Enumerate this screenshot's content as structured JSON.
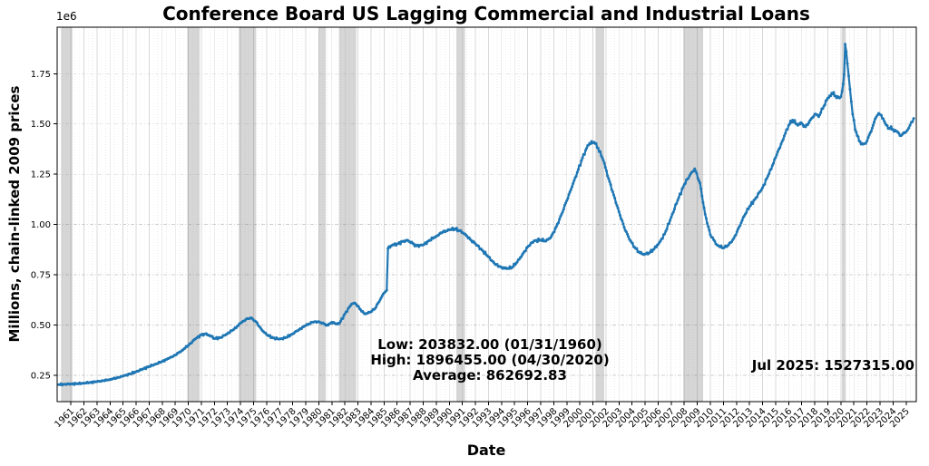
{
  "title": "Conference Board US Lagging Commercial and Industrial Loans",
  "annotations": {
    "stats_line1": "Low: 203832.00 (01/31/1960)",
    "stats_line2": "High: 1896455.00 (04/30/2020)",
    "stats_line3": "Average: 862692.83",
    "latest": "Jul 2025: 1527315.00"
  },
  "chart_data": {
    "type": "line",
    "title": "Conference Board US Lagging Commercial and Industrial Loans",
    "xlabel": "Date",
    "ylabel": "Millions, chain-linked 2009 prices",
    "y_offset_text": "1e6",
    "line_color": "#1f77b4",
    "recession_band_color": "rgba(128,128,128,0.32)",
    "grid": true,
    "legend": "none",
    "xlim": [
      1959.95,
      2025.78
    ],
    "ylim": [
      119201,
      1981086
    ],
    "x_ticks": [
      "1961",
      "1962",
      "1963",
      "1964",
      "1965",
      "1966",
      "1967",
      "1968",
      "1969",
      "1970",
      "1971",
      "1972",
      "1973",
      "1974",
      "1975",
      "1976",
      "1977",
      "1978",
      "1979",
      "1980",
      "1981",
      "1982",
      "1983",
      "1984",
      "1985",
      "1986",
      "1987",
      "1988",
      "1989",
      "1990",
      "1991",
      "1992",
      "1993",
      "1994",
      "1995",
      "1996",
      "1997",
      "1998",
      "1999",
      "2000",
      "2001",
      "2002",
      "2003",
      "2004",
      "2005",
      "2006",
      "2007",
      "2008",
      "2009",
      "2010",
      "2011",
      "2012",
      "2013",
      "2014",
      "2015",
      "2016",
      "2017",
      "2018",
      "2019",
      "2020",
      "2021",
      "2022",
      "2023",
      "2024",
      "2025"
    ],
    "x_tick_years": [
      1961,
      1962,
      1963,
      1964,
      1965,
      1966,
      1967,
      1968,
      1969,
      1970,
      1971,
      1972,
      1973,
      1974,
      1975,
      1976,
      1977,
      1978,
      1979,
      1980,
      1981,
      1982,
      1983,
      1984,
      1985,
      1986,
      1987,
      1988,
      1989,
      1990,
      1991,
      1992,
      1993,
      1994,
      1995,
      1996,
      1997,
      1998,
      1999,
      2000,
      2001,
      2002,
      2003,
      2004,
      2005,
      2006,
      2007,
      2008,
      2009,
      2010,
      2011,
      2012,
      2013,
      2014,
      2015,
      2016,
      2017,
      2018,
      2019,
      2020,
      2021,
      2022,
      2023,
      2024,
      2025
    ],
    "y_ticks": [
      {
        "value": 250000,
        "label": "0.25"
      },
      {
        "value": 500000,
        "label": "0.50"
      },
      {
        "value": 750000,
        "label": "0.75"
      },
      {
        "value": 1000000,
        "label": "1.00"
      },
      {
        "value": 1250000,
        "label": "1.25"
      },
      {
        "value": 1500000,
        "label": "1.50"
      },
      {
        "value": 1750000,
        "label": "1.75"
      }
    ],
    "recession_bands": [
      [
        1960.25,
        1961.12
      ],
      [
        1969.92,
        1970.87
      ],
      [
        1973.87,
        1975.2
      ],
      [
        1980.0,
        1980.54
      ],
      [
        1981.54,
        1982.87
      ],
      [
        1990.54,
        1991.2
      ],
      [
        2001.2,
        2001.87
      ],
      [
        2007.92,
        2009.45
      ],
      [
        2020.08,
        2020.37
      ]
    ],
    "series": [
      {
        "name": "US Lagging Commercial and Industrial Loans",
        "low": {
          "value": 203832.0,
          "date": "01/31/1960"
        },
        "high": {
          "value": 1896455.0,
          "date": "04/30/2020"
        },
        "average": 862692.83,
        "last": {
          "value": 1527315.0,
          "date": "Jul 2025"
        },
        "points": [
          [
            1960.08,
            203832
          ],
          [
            1960.5,
            205500
          ],
          [
            1961,
            207000
          ],
          [
            1961.5,
            208500
          ],
          [
            1962,
            211000
          ],
          [
            1962.5,
            214500
          ],
          [
            1963,
            218500
          ],
          [
            1963.5,
            223500
          ],
          [
            1964,
            229500
          ],
          [
            1964.5,
            237000
          ],
          [
            1965,
            246000
          ],
          [
            1965.5,
            256000
          ],
          [
            1966,
            268000
          ],
          [
            1966.5,
            281000
          ],
          [
            1967,
            294000
          ],
          [
            1967.5,
            306000
          ],
          [
            1968,
            319000
          ],
          [
            1968.5,
            334000
          ],
          [
            1969,
            351000
          ],
          [
            1969.5,
            373000
          ],
          [
            1970,
            399000
          ],
          [
            1970.5,
            429000
          ],
          [
            1971,
            452000
          ],
          [
            1971.3,
            456000
          ],
          [
            1971.7,
            447000
          ],
          [
            1972,
            433000
          ],
          [
            1972.5,
            438000
          ],
          [
            1973,
            458000
          ],
          [
            1973.5,
            479000
          ],
          [
            1974,
            509000
          ],
          [
            1974.5,
            532000
          ],
          [
            1974.8,
            536000
          ],
          [
            1975.2,
            516000
          ],
          [
            1975.6,
            479000
          ],
          [
            1976,
            452000
          ],
          [
            1976.5,
            436000
          ],
          [
            1977,
            430000
          ],
          [
            1977.5,
            438000
          ],
          [
            1978,
            457000
          ],
          [
            1978.5,
            478000
          ],
          [
            1979,
            498000
          ],
          [
            1979.5,
            514000
          ],
          [
            1980,
            517000
          ],
          [
            1980.4,
            506000
          ],
          [
            1980.7,
            499000
          ],
          [
            1981,
            514000
          ],
          [
            1981.3,
            506000
          ],
          [
            1981.6,
            511000
          ],
          [
            1982,
            556000
          ],
          [
            1982.5,
            604000
          ],
          [
            1982.8,
            608000
          ],
          [
            1983.2,
            576000
          ],
          [
            1983.5,
            556000
          ],
          [
            1983.9,
            563000
          ],
          [
            1984.3,
            581000
          ],
          [
            1984.7,
            626000
          ],
          [
            1985,
            659000
          ],
          [
            1985.2,
            673000
          ],
          [
            1985.3,
            881000
          ],
          [
            1985.6,
            896000
          ],
          [
            1986,
            903000
          ],
          [
            1986.5,
            917000
          ],
          [
            1986.8,
            922000
          ],
          [
            1987.2,
            906000
          ],
          [
            1987.5,
            894000
          ],
          [
            1988,
            898000
          ],
          [
            1988.5,
            922000
          ],
          [
            1989,
            942000
          ],
          [
            1989.5,
            963000
          ],
          [
            1990,
            973000
          ],
          [
            1990.4,
            978000
          ],
          [
            1990.8,
            969000
          ],
          [
            1991.2,
            953000
          ],
          [
            1991.6,
            926000
          ],
          [
            1992,
            904000
          ],
          [
            1992.5,
            873000
          ],
          [
            1993,
            839000
          ],
          [
            1993.5,
            803000
          ],
          [
            1994,
            787000
          ],
          [
            1994.4,
            780000
          ],
          [
            1994.8,
            786000
          ],
          [
            1995.2,
            813000
          ],
          [
            1995.6,
            851000
          ],
          [
            1996,
            889000
          ],
          [
            1996.5,
            919000
          ],
          [
            1997,
            923000
          ],
          [
            1997.4,
            917000
          ],
          [
            1997.8,
            939000
          ],
          [
            1998.2,
            989000
          ],
          [
            1998.6,
            1051000
          ],
          [
            1999,
            1119000
          ],
          [
            1999.4,
            1187000
          ],
          [
            1999.8,
            1259000
          ],
          [
            2000.2,
            1331000
          ],
          [
            2000.6,
            1393000
          ],
          [
            2000.9,
            1413000
          ],
          [
            2001.1,
            1409000
          ],
          [
            2001.4,
            1379000
          ],
          [
            2001.8,
            1319000
          ],
          [
            2002.2,
            1229000
          ],
          [
            2002.6,
            1146000
          ],
          [
            2003,
            1063000
          ],
          [
            2003.4,
            986000
          ],
          [
            2003.8,
            926000
          ],
          [
            2004.2,
            886000
          ],
          [
            2004.6,
            859000
          ],
          [
            2004.9,
            850000
          ],
          [
            2005.3,
            858000
          ],
          [
            2005.7,
            879000
          ],
          [
            2006.1,
            911000
          ],
          [
            2006.5,
            953000
          ],
          [
            2007,
            1036000
          ],
          [
            2007.5,
            1121000
          ],
          [
            2008,
            1199000
          ],
          [
            2008.5,
            1253000
          ],
          [
            2008.8,
            1277000
          ],
          [
            2009.2,
            1206000
          ],
          [
            2009.6,
            1051000
          ],
          [
            2010,
            949000
          ],
          [
            2010.5,
            899000
          ],
          [
            2011,
            883000
          ],
          [
            2011.4,
            899000
          ],
          [
            2011.8,
            931000
          ],
          [
            2012.2,
            987000
          ],
          [
            2012.6,
            1043000
          ],
          [
            2013,
            1089000
          ],
          [
            2013.5,
            1133000
          ],
          [
            2014,
            1183000
          ],
          [
            2014.5,
            1253000
          ],
          [
            2015,
            1333000
          ],
          [
            2015.5,
            1413000
          ],
          [
            2016,
            1493000
          ],
          [
            2016.3,
            1519000
          ],
          [
            2016.7,
            1493000
          ],
          [
            2017,
            1503000
          ],
          [
            2017.3,
            1486000
          ],
          [
            2017.7,
            1523000
          ],
          [
            2018,
            1549000
          ],
          [
            2018.3,
            1536000
          ],
          [
            2018.7,
            1589000
          ],
          [
            2019,
            1629000
          ],
          [
            2019.3,
            1653000
          ],
          [
            2019.6,
            1639000
          ],
          [
            2019.9,
            1629000
          ],
          [
            2020.1,
            1663000
          ],
          [
            2020.25,
            1746000
          ],
          [
            2020.33,
            1896455
          ],
          [
            2020.5,
            1801000
          ],
          [
            2020.7,
            1673000
          ],
          [
            2020.9,
            1549000
          ],
          [
            2021.1,
            1471000
          ],
          [
            2021.4,
            1416000
          ],
          [
            2021.7,
            1399000
          ],
          [
            2021.9,
            1403000
          ],
          [
            2022.1,
            1433000
          ],
          [
            2022.4,
            1479000
          ],
          [
            2022.7,
            1533000
          ],
          [
            2022.9,
            1553000
          ],
          [
            2023.1,
            1543000
          ],
          [
            2023.4,
            1503000
          ],
          [
            2023.7,
            1479000
          ],
          [
            2024,
            1473000
          ],
          [
            2024.3,
            1463000
          ],
          [
            2024.6,
            1441000
          ],
          [
            2024.9,
            1456000
          ],
          [
            2025.1,
            1469000
          ],
          [
            2025.3,
            1493000
          ],
          [
            2025.58,
            1527315
          ]
        ]
      }
    ]
  }
}
